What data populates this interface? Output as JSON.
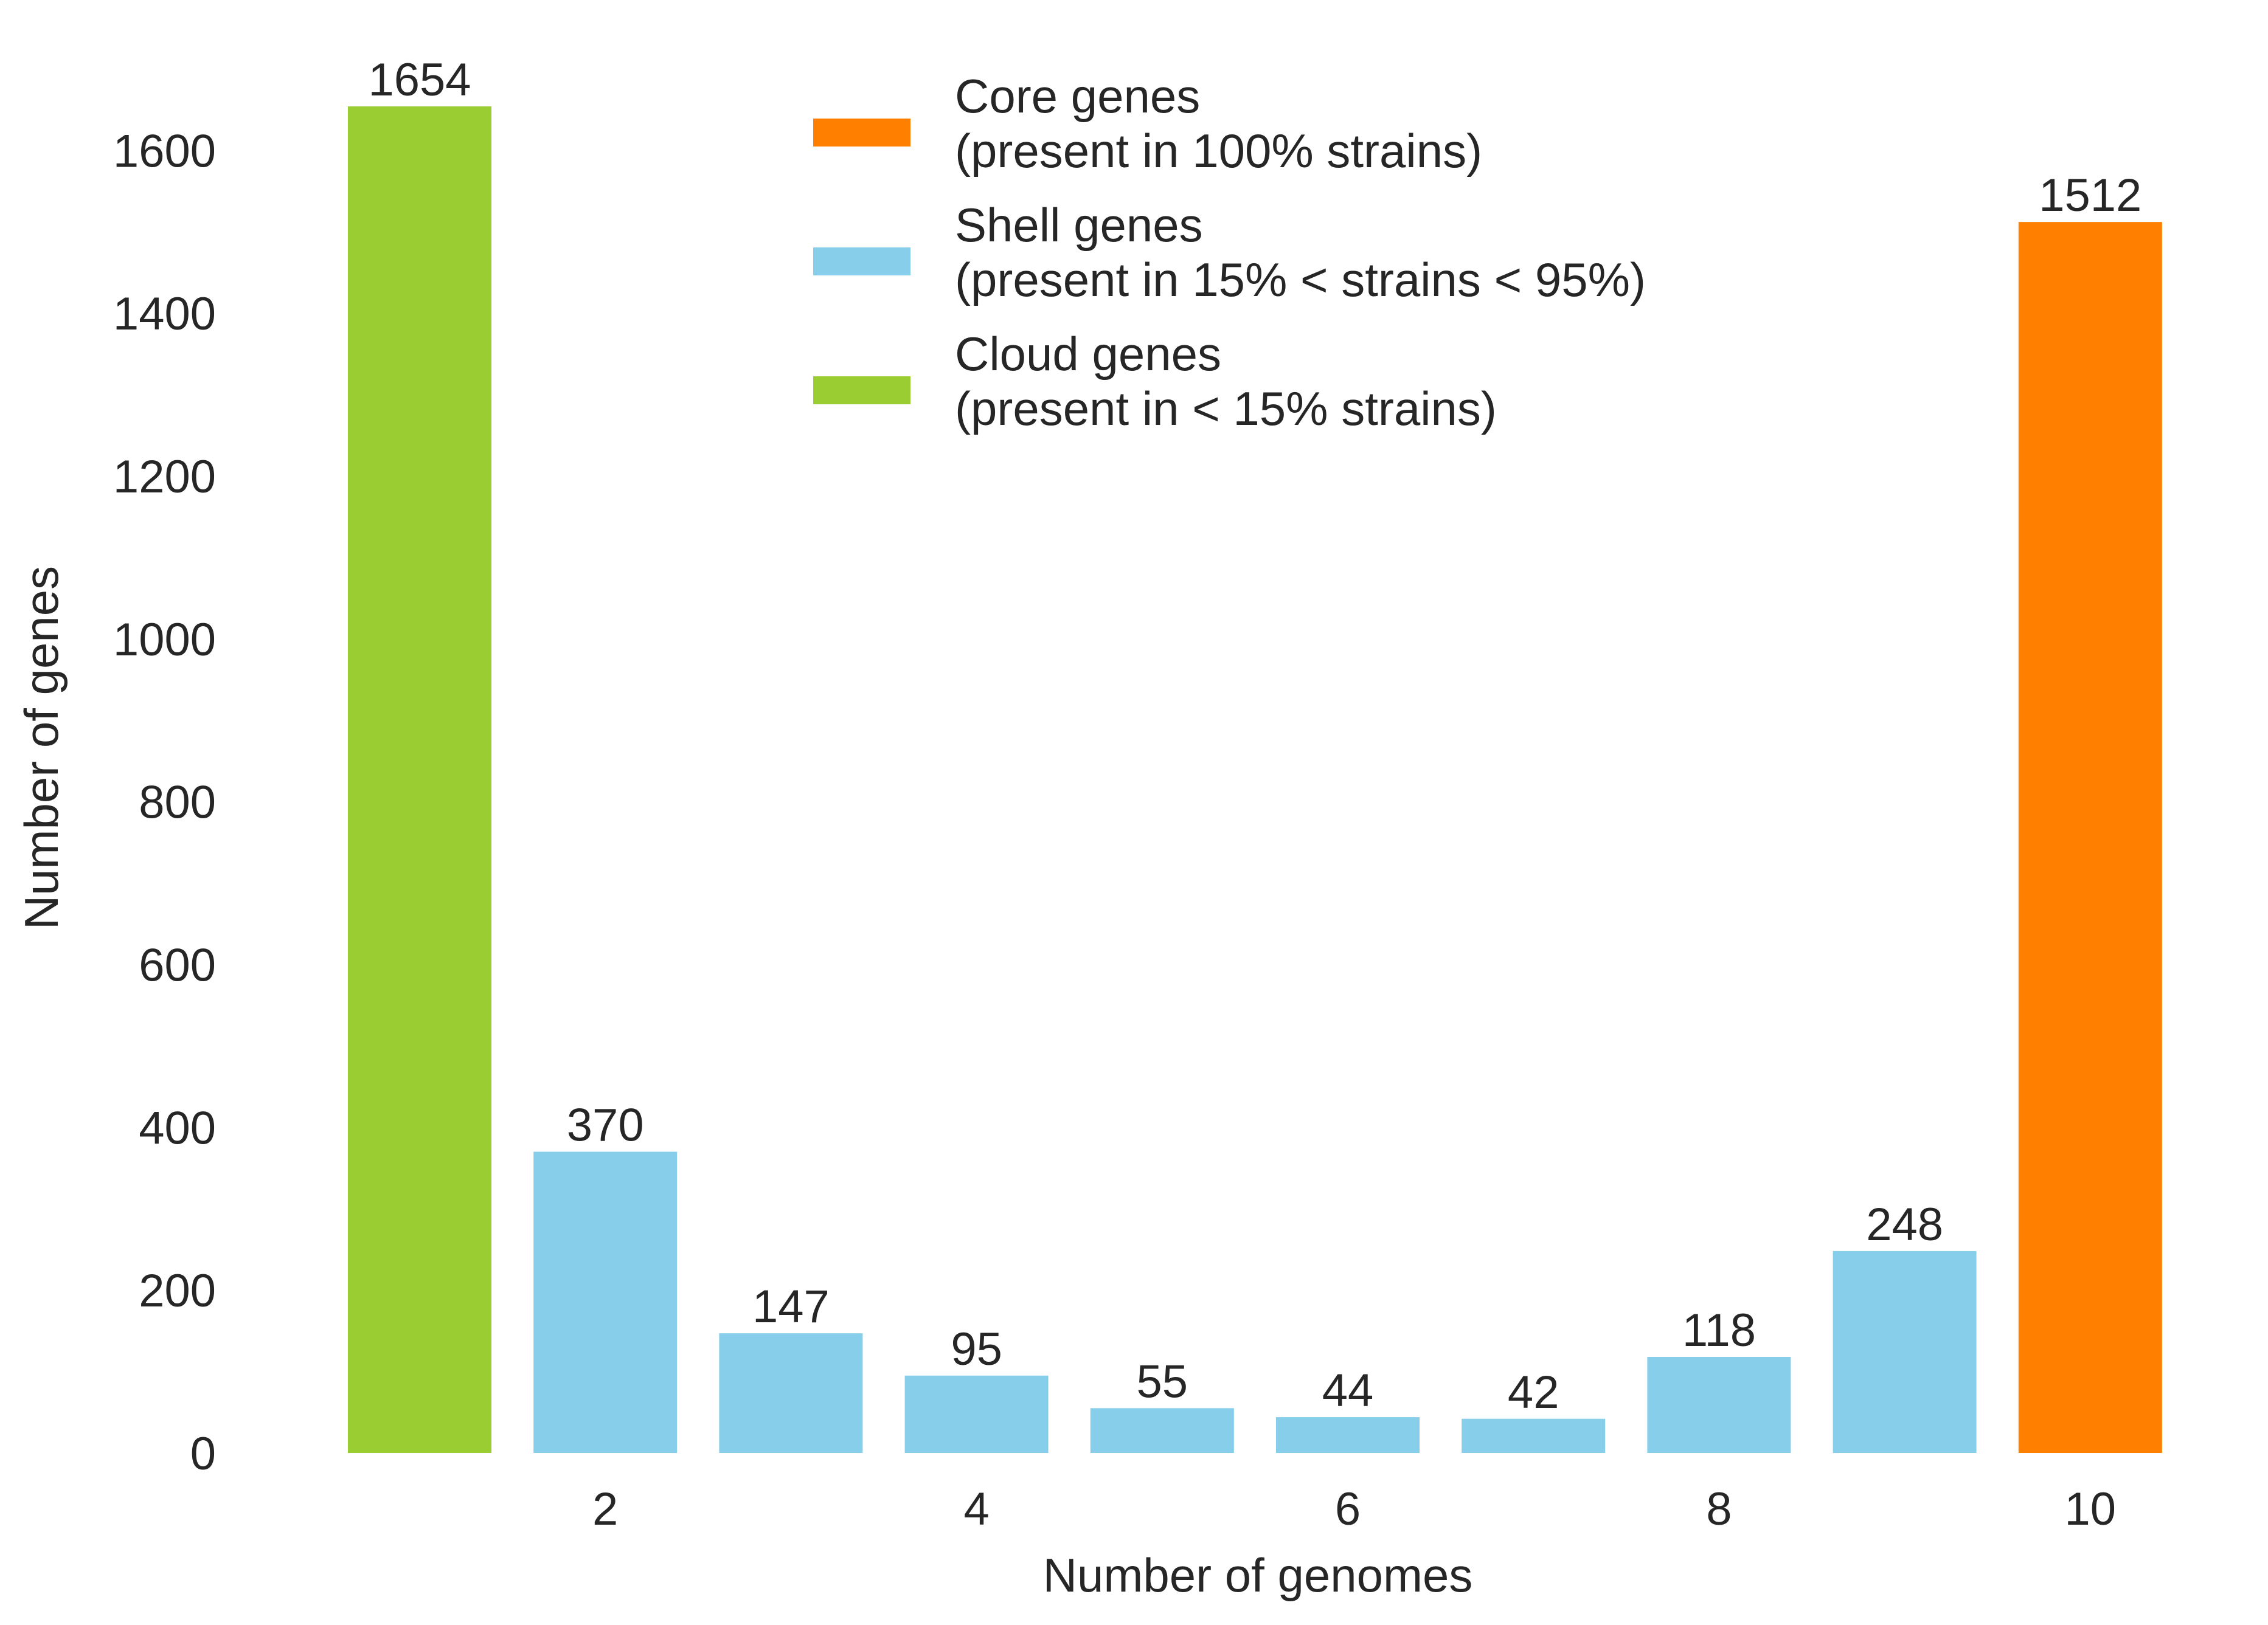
{
  "chart_data": {
    "type": "bar",
    "x": [
      1,
      2,
      3,
      4,
      5,
      6,
      7,
      8,
      9,
      10
    ],
    "values": [
      1654,
      370,
      147,
      95,
      55,
      44,
      42,
      118,
      248,
      1512
    ],
    "bar_groups": [
      "cloud",
      "shell",
      "shell",
      "shell",
      "shell",
      "shell",
      "shell",
      "shell",
      "shell",
      "core"
    ],
    "data_labels": [
      "1654",
      "370",
      "147",
      "95",
      "55",
      "44",
      "42",
      "118",
      "248",
      "1512"
    ],
    "xlabel": "Number of genomes",
    "ylabel": "Number of genes",
    "xticks": [
      "2",
      "4",
      "6",
      "8",
      "10"
    ],
    "xtick_values": [
      2,
      4,
      6,
      8,
      10
    ],
    "yticks": [
      "0",
      "200",
      "400",
      "600",
      "800",
      "1000",
      "1200",
      "1400",
      "1600"
    ],
    "ytick_values": [
      0,
      200,
      400,
      600,
      800,
      1000,
      1200,
      1400,
      1600
    ],
    "ylim": [
      0,
      1654
    ],
    "grid": false,
    "legend_position": "top-center",
    "legend": [
      {
        "key": "core",
        "line1": "Core genes",
        "line2": "(present in 100% strains)",
        "color": "#ff8000"
      },
      {
        "key": "shell",
        "line1": "Shell genes",
        "line2": "(present in 15% < strains < 95%)",
        "color": "#87ceeb"
      },
      {
        "key": "cloud",
        "line1": "Cloud genes",
        "line2": "(present in < 15% strains)",
        "color": "#9acd32"
      }
    ],
    "colors": {
      "core": "#ff8000",
      "shell": "#87ceeb",
      "cloud": "#9acd32"
    }
  }
}
